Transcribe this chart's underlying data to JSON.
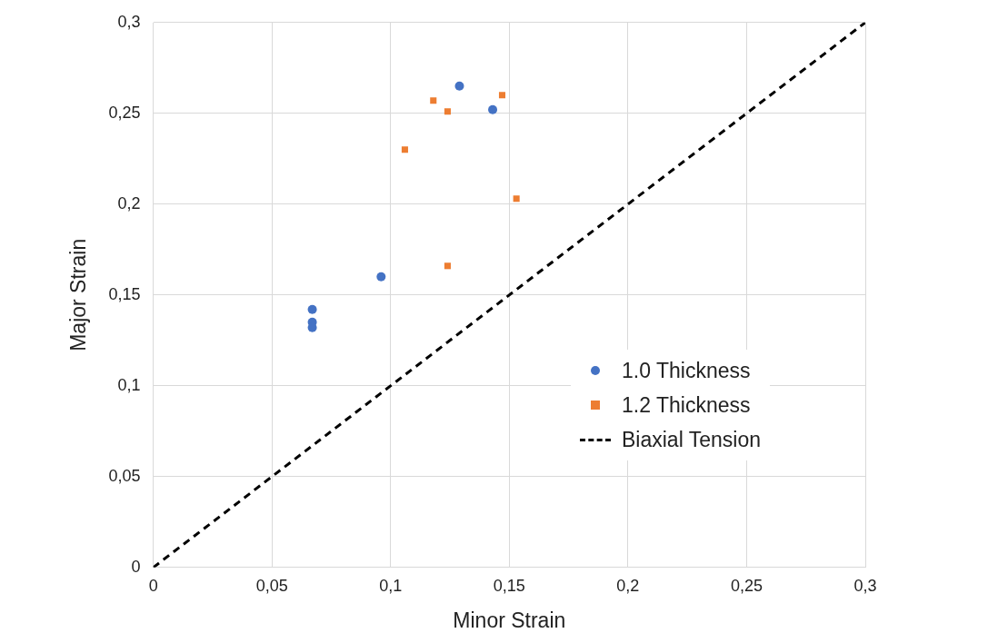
{
  "chart_data": {
    "type": "scatter",
    "xlabel": "Minor Strain",
    "ylabel": "Major Strain",
    "xlim": [
      0,
      0.3
    ],
    "ylim": [
      0,
      0.3
    ],
    "xticks": [
      {
        "value": 0,
        "label": "0"
      },
      {
        "value": 0.05,
        "label": "0,05"
      },
      {
        "value": 0.1,
        "label": "0,1"
      },
      {
        "value": 0.15,
        "label": "0,15"
      },
      {
        "value": 0.2,
        "label": "0,2"
      },
      {
        "value": 0.25,
        "label": "0,25"
      },
      {
        "value": 0.3,
        "label": "0,3"
      }
    ],
    "yticks": [
      {
        "value": 0,
        "label": "0"
      },
      {
        "value": 0.05,
        "label": "0,05"
      },
      {
        "value": 0.1,
        "label": "0,1"
      },
      {
        "value": 0.15,
        "label": "0,15"
      },
      {
        "value": 0.2,
        "label": "0,2"
      },
      {
        "value": 0.25,
        "label": "0,25"
      },
      {
        "value": 0.3,
        "label": "0,3"
      }
    ],
    "grid": true,
    "legend": "right",
    "series": [
      {
        "name": "1.0 Thickness",
        "color": "#4472c4",
        "marker": "circle",
        "x": [
          0.067,
          0.067,
          0.067,
          0.096,
          0.129,
          0.143
        ],
        "values": [
          0.142,
          0.135,
          0.132,
          0.16,
          0.265,
          0.252
        ]
      },
      {
        "name": "1.2 Thickness",
        "color": "#ed7d31",
        "marker": "square",
        "x": [
          0.106,
          0.118,
          0.124,
          0.147,
          0.153,
          0.124
        ],
        "values": [
          0.23,
          0.257,
          0.251,
          0.26,
          0.203,
          0.166
        ]
      },
      {
        "name": "Biaxial Tension",
        "type": "line",
        "color": "#000000",
        "marker": "none",
        "line_style": "dashed",
        "x": [
          0,
          0.3
        ],
        "values": [
          0,
          0.3
        ]
      }
    ]
  }
}
